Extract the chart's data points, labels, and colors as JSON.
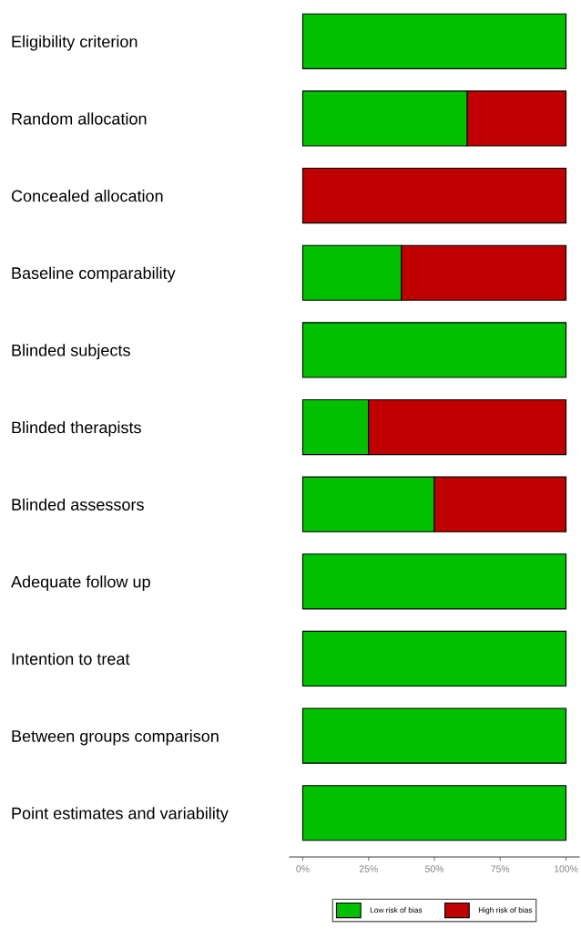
{
  "chart_data": {
    "type": "bar",
    "orientation": "horizontal",
    "stacked": true,
    "categories": [
      "Eligibility criterion",
      "Random allocation",
      "Concealed allocation",
      "Baseline comparability",
      "Blinded subjects",
      "Blinded therapists",
      "Blinded assessors",
      "Adequate follow up",
      "Intention to treat",
      "Between groups comparison",
      "Point estimates and variability"
    ],
    "series": [
      {
        "name": "Low risk of bias",
        "color": "#00c000",
        "values": [
          100,
          62.5,
          0,
          37.5,
          100,
          25,
          50,
          100,
          100,
          100,
          100
        ]
      },
      {
        "name": "High risk of bias",
        "color": "#c00000",
        "values": [
          0,
          37.5,
          100,
          62.5,
          0,
          75,
          50,
          0,
          0,
          0,
          0
        ]
      }
    ],
    "xlim": [
      -5,
      105
    ],
    "xticks": [
      {
        "value": 0,
        "label": "0%"
      },
      {
        "value": 25,
        "label": "25%"
      },
      {
        "value": 50,
        "label": "50%"
      },
      {
        "value": 75,
        "label": "75%"
      },
      {
        "value": 100,
        "label": "100%"
      }
    ],
    "grid": false,
    "legend": "bottom"
  }
}
